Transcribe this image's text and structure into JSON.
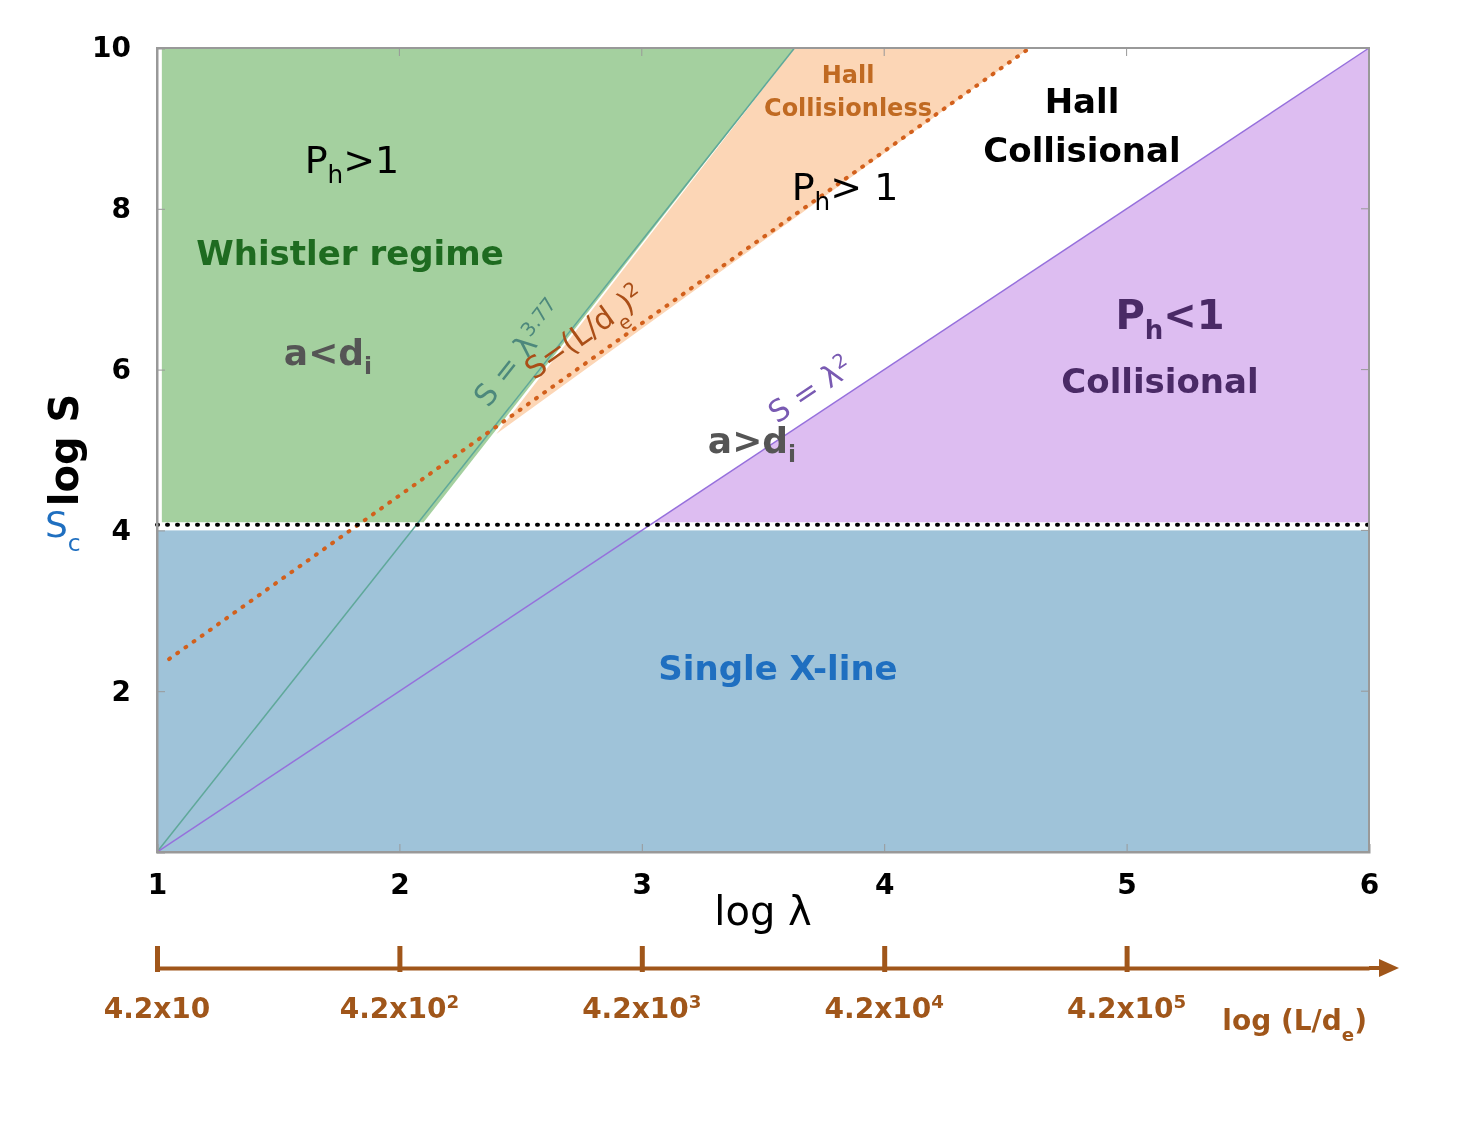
{
  "chart_data": {
    "type": "line",
    "xlabel": "log λ",
    "ylabel": "log S",
    "xlim": [
      1,
      6
    ],
    "ylim": [
      0,
      10
    ],
    "xticks": [
      1,
      2,
      3,
      4,
      5,
      6
    ],
    "yticks": [
      2,
      4,
      6,
      8,
      10
    ],
    "x2label": "log (L/d$_{e}$)",
    "x2lim": [
      42,
      4200000
    ],
    "x2ticks": [
      {
        "value": 42,
        "label": "4.2x10"
      },
      {
        "value": 420,
        "label": "4.2x10$^{2}$"
      },
      {
        "value": 4200,
        "label": "4.2x10$^{3}$"
      },
      {
        "value": 42000,
        "label": "4.2x10$^{4}$"
      },
      {
        "value": 420000,
        "label": "4.2x10$^{5}$"
      }
    ],
    "log": "x2",
    "bands": [
      {
        "axis": "y",
        "from": 0,
        "to": 4,
        "color": "#9fc3d9"
      }
    ],
    "ref_lines": [
      {
        "axis": "y",
        "value": 4.07,
        "label": "S$_{c}$",
        "color": "#000000",
        "line_style": "dotted"
      }
    ],
    "series": [
      {
        "type": "area",
        "color": "#a4d09f",
        "x": [
          1.02,
          1.02,
          3.63,
          2.1
        ],
        "values": [
          4.1,
          10,
          10,
          4.1
        ]
      },
      {
        "type": "area",
        "color": "#fcd6b6",
        "x": [
          2.4,
          3.63,
          4.6
        ],
        "values": [
          5.2,
          10,
          10
        ]
      },
      {
        "type": "area",
        "color": "#ddbdf1",
        "x": [
          3.05,
          6,
          6
        ],
        "values": [
          4.1,
          10,
          4.1
        ]
      },
      {
        "type": "line",
        "name": "S = λ$^{3.77}$",
        "color": "#5fa89a",
        "line_style": "solid",
        "x": [
          1,
          3.63
        ],
        "values": [
          0,
          10
        ]
      },
      {
        "type": "line",
        "name": "S=(L/d$_{e}$)$^{2}$",
        "color": "#d2601c",
        "line_style": "dotted",
        "x": [
          1.05,
          4.6
        ],
        "values": [
          2.4,
          10
        ]
      },
      {
        "type": "line",
        "name": "S = λ$^{2}$",
        "color": "#9670dc",
        "line_style": "solid",
        "x": [
          1,
          6
        ],
        "values": [
          0,
          10
        ]
      }
    ],
    "annotations": [
      "P$_{h}$>1",
      "Whistler regime",
      "a<d$_{i}$",
      "Hall",
      "Collisionless",
      "P$_{h}$> 1",
      "Hall",
      "Collisional",
      "P$_{h}$<1",
      "Collisional",
      "a>d$_{i}$",
      "Single X-line"
    ]
  }
}
